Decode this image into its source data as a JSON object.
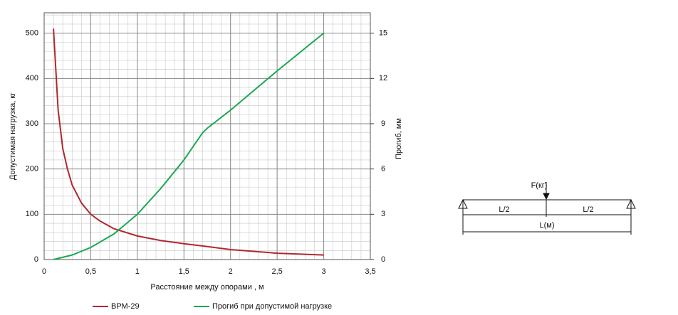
{
  "chart_data": {
    "type": "line",
    "x_label": "Расстояние между опорами , м",
    "y_label": "Допустимая нагрузка, кг",
    "y2_label": "Прогиб, мм",
    "xlim": [
      0,
      3.5
    ],
    "xticks": [
      0,
      {
        "value": 0.5,
        "label": "0,5"
      },
      1,
      {
        "value": 1.5,
        "label": "1,5"
      },
      2,
      {
        "value": 2.5,
        "label": "2,5"
      },
      3,
      {
        "value": 3.5,
        "label": "3,5"
      }
    ],
    "ylim": [
      0,
      545
    ],
    "yticks": [
      0,
      100,
      200,
      300,
      400,
      500
    ],
    "y2lim": [
      0,
      16.35
    ],
    "y2ticks": [
      0,
      3,
      6,
      9,
      12,
      15
    ],
    "grid": true,
    "legend": "bottom",
    "series": [
      {
        "name": "ВРМ-29",
        "color": "#b0282e",
        "x": [
          0.1,
          0.15,
          0.2,
          0.25,
          0.3,
          0.4,
          0.5,
          0.6,
          0.75,
          1.0,
          1.25,
          1.5,
          1.7,
          2.0,
          2.5,
          3.0
        ],
        "values": [
          510,
          330,
          245,
          200,
          165,
          125,
          100,
          85,
          68,
          52,
          42,
          35,
          30,
          22,
          14,
          10
        ]
      },
      {
        "name": "Прогиб при допустимой нагрузке",
        "color": "#1aa852",
        "axis": "y2",
        "x": [
          0.1,
          0.3,
          0.5,
          0.75,
          1.0,
          1.25,
          1.5,
          1.7,
          1.75,
          2.0,
          2.5,
          3.0
        ],
        "values": [
          0,
          0.3,
          0.8,
          1.7,
          3.0,
          4.7,
          6.6,
          8.4,
          8.7,
          9.9,
          12.5,
          15
        ]
      }
    ]
  },
  "diagram": {
    "force": "F(кг)",
    "half_left": "L/2",
    "half_right": "L/2",
    "length": "L(м)"
  }
}
